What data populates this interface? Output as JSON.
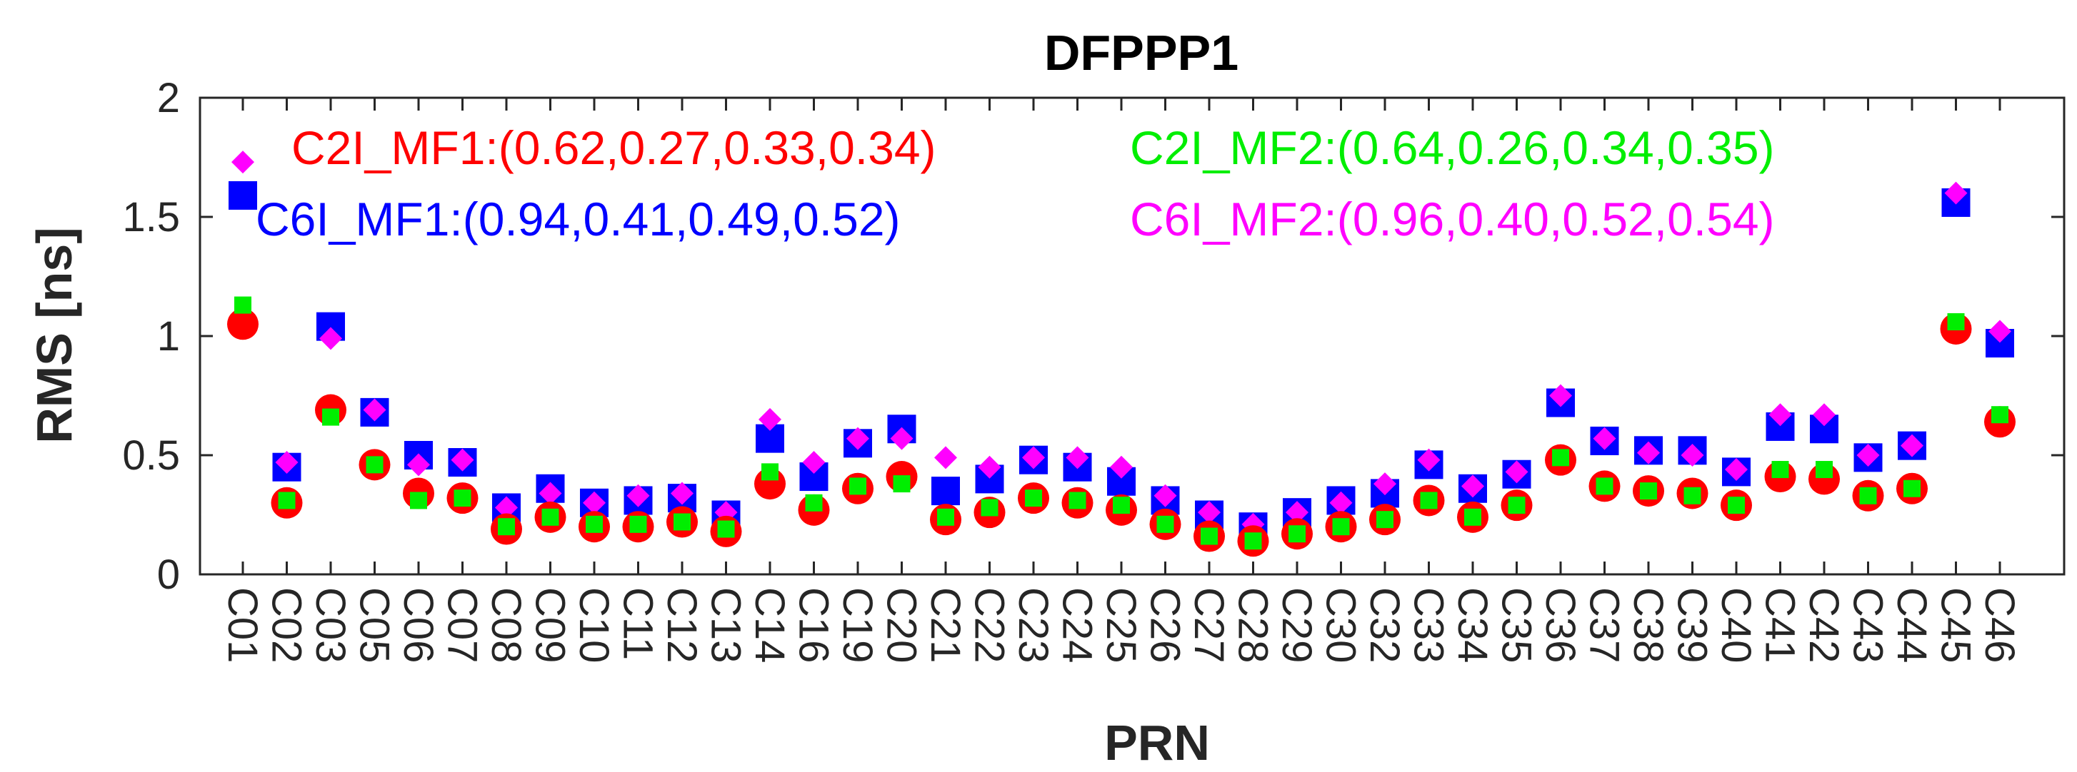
{
  "chart_data": {
    "type": "scatter",
    "title": "DFPPP1",
    "xlabel": "PRN",
    "ylabel": "RMS [ns]",
    "ylim": [
      0,
      2
    ],
    "yticks": [
      "0",
      "0.5",
      "1",
      "1.5",
      "2"
    ],
    "grid": false,
    "legend_position": "top",
    "categories": [
      "C01",
      "C02",
      "C03",
      "C05",
      "C06",
      "C07",
      "C08",
      "C09",
      "C10",
      "C11",
      "C12",
      "C13",
      "C14",
      "C16",
      "C19",
      "C20",
      "C21",
      "C22",
      "C23",
      "C24",
      "C25",
      "C26",
      "C27",
      "C28",
      "C29",
      "C30",
      "C32",
      "C33",
      "C34",
      "C35",
      "C36",
      "C37",
      "C38",
      "C39",
      "C40",
      "C41",
      "C42",
      "C43",
      "C44",
      "C45",
      "C46"
    ],
    "series": [
      {
        "name": "C2I_MF1",
        "legend_text": "C2I_MF1:(0.62,0.27,0.33,0.34)",
        "color": "#ff0000",
        "marker": "circle",
        "values": [
          1.05,
          0.3,
          0.69,
          0.46,
          0.34,
          0.32,
          0.19,
          0.24,
          0.2,
          0.2,
          0.22,
          0.18,
          0.38,
          0.27,
          0.36,
          0.41,
          0.23,
          0.26,
          0.32,
          0.3,
          0.27,
          0.21,
          0.16,
          0.14,
          0.17,
          0.2,
          0.23,
          0.31,
          0.24,
          0.29,
          0.48,
          0.37,
          0.35,
          0.34,
          0.29,
          0.41,
          0.4,
          0.33,
          0.36,
          1.03,
          0.64
        ]
      },
      {
        "name": "C2I_MF2",
        "legend_text": "C2I_MF2:(0.64,0.26,0.34,0.35)",
        "color": "#00ee00",
        "marker": "square",
        "values": [
          1.13,
          0.31,
          0.66,
          0.46,
          0.31,
          0.32,
          0.2,
          0.24,
          0.21,
          0.21,
          0.22,
          0.19,
          0.43,
          0.3,
          0.37,
          0.38,
          0.24,
          0.28,
          0.32,
          0.31,
          0.29,
          0.21,
          0.16,
          0.14,
          0.17,
          0.2,
          0.23,
          0.31,
          0.24,
          0.29,
          0.49,
          0.37,
          0.35,
          0.33,
          0.29,
          0.44,
          0.44,
          0.33,
          0.36,
          1.06,
          0.67
        ]
      },
      {
        "name": "C6I_MF1",
        "legend_text": "C6I_MF1:(0.94,0.41,0.49,0.52)",
        "color": "#0000ff",
        "marker": "square",
        "values": [
          1.59,
          0.45,
          1.04,
          0.68,
          0.5,
          0.47,
          0.28,
          0.36,
          0.3,
          0.31,
          0.32,
          0.25,
          0.57,
          0.41,
          0.55,
          0.61,
          0.35,
          0.4,
          0.48,
          0.45,
          0.39,
          0.31,
          0.25,
          0.2,
          0.26,
          0.31,
          0.34,
          0.46,
          0.36,
          0.42,
          0.72,
          0.56,
          0.52,
          0.52,
          0.43,
          0.62,
          0.61,
          0.49,
          0.54,
          1.56,
          0.97
        ]
      },
      {
        "name": "C6I_MF2",
        "legend_text": "C6I_MF2:(0.96,0.40,0.52,0.54)",
        "color": "#ff00ff",
        "marker": "diamond",
        "values": [
          1.73,
          0.47,
          0.99,
          0.69,
          0.46,
          0.48,
          0.28,
          0.34,
          0.3,
          0.33,
          0.34,
          0.26,
          0.65,
          0.47,
          0.57,
          0.57,
          0.49,
          0.45,
          0.49,
          0.49,
          0.45,
          0.33,
          0.26,
          0.21,
          0.26,
          0.3,
          0.38,
          0.48,
          0.37,
          0.43,
          0.75,
          0.57,
          0.51,
          0.5,
          0.44,
          0.67,
          0.67,
          0.5,
          0.54,
          1.6,
          1.02
        ]
      }
    ]
  }
}
